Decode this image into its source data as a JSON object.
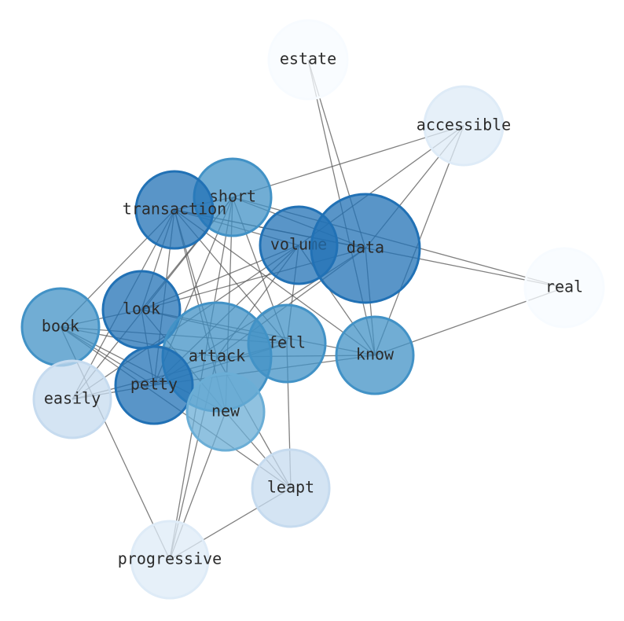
{
  "nodes": [
    {
      "id": "estate",
      "label": "estate",
      "color": "#f7fbff"
    },
    {
      "id": "accessible",
      "label": "accessible",
      "color": "#deebf7"
    },
    {
      "id": "short",
      "label": "short",
      "color": "#4292c6"
    },
    {
      "id": "transaction",
      "label": "transaction",
      "color": "#2171b5"
    },
    {
      "id": "volume",
      "label": "volume",
      "color": "#2171b5"
    },
    {
      "id": "data",
      "label": "data",
      "color": "#2171b5"
    },
    {
      "id": "real",
      "label": "real",
      "color": "#f7fbff"
    },
    {
      "id": "look",
      "label": "look",
      "color": "#2171b5"
    },
    {
      "id": "book",
      "label": "book",
      "color": "#4292c6"
    },
    {
      "id": "attack",
      "label": "attack",
      "color": "#4292c6"
    },
    {
      "id": "fell",
      "label": "fell",
      "color": "#4292c6"
    },
    {
      "id": "know",
      "label": "know",
      "color": "#4292c6"
    },
    {
      "id": "petty",
      "label": "petty",
      "color": "#2171b5"
    },
    {
      "id": "easily",
      "label": "easily",
      "color": "#c6dbef"
    },
    {
      "id": "new",
      "label": "new",
      "color": "#6baed6"
    },
    {
      "id": "leapt",
      "label": "leapt",
      "color": "#c6dbef"
    },
    {
      "id": "progressive",
      "label": "progressive",
      "color": "#deebf7"
    }
  ],
  "edges": [
    [
      "estate",
      "data"
    ],
    [
      "estate",
      "know"
    ],
    [
      "accessible",
      "short"
    ],
    [
      "accessible",
      "volume"
    ],
    [
      "accessible",
      "data"
    ],
    [
      "accessible",
      "know"
    ],
    [
      "real",
      "short"
    ],
    [
      "real",
      "transaction"
    ],
    [
      "real",
      "know"
    ],
    [
      "short",
      "transaction"
    ],
    [
      "short",
      "look"
    ],
    [
      "short",
      "petty"
    ],
    [
      "short",
      "new"
    ],
    [
      "short",
      "progressive"
    ],
    [
      "short",
      "fell"
    ],
    [
      "short",
      "data"
    ],
    [
      "short",
      "easily"
    ],
    [
      "transaction",
      "look"
    ],
    [
      "transaction",
      "petty"
    ],
    [
      "transaction",
      "attack"
    ],
    [
      "transaction",
      "fell"
    ],
    [
      "transaction",
      "know"
    ],
    [
      "transaction",
      "data"
    ],
    [
      "transaction",
      "volume"
    ],
    [
      "transaction",
      "book"
    ],
    [
      "transaction",
      "easily"
    ],
    [
      "transaction",
      "new"
    ],
    [
      "volume",
      "look"
    ],
    [
      "volume",
      "petty"
    ],
    [
      "volume",
      "attack"
    ],
    [
      "volume",
      "fell"
    ],
    [
      "volume",
      "know"
    ],
    [
      "volume",
      "easily"
    ],
    [
      "data",
      "petty"
    ],
    [
      "data",
      "look"
    ],
    [
      "data",
      "attack"
    ],
    [
      "data",
      "know"
    ],
    [
      "look",
      "book"
    ],
    [
      "look",
      "fell"
    ],
    [
      "look",
      "know"
    ],
    [
      "look",
      "petty"
    ],
    [
      "look",
      "new"
    ],
    [
      "book",
      "petty"
    ],
    [
      "book",
      "attack"
    ],
    [
      "book",
      "new"
    ],
    [
      "book",
      "leapt"
    ],
    [
      "book",
      "progressive"
    ],
    [
      "book",
      "fell"
    ],
    [
      "attack",
      "know"
    ],
    [
      "attack",
      "leapt"
    ],
    [
      "attack",
      "progressive"
    ],
    [
      "fell",
      "leapt"
    ],
    [
      "fell",
      "petty"
    ],
    [
      "fell",
      "easily"
    ],
    [
      "petty",
      "know"
    ],
    [
      "petty",
      "easily"
    ],
    [
      "new",
      "progressive"
    ],
    [
      "new",
      "leapt"
    ],
    [
      "leapt",
      "progressive"
    ]
  ]
}
